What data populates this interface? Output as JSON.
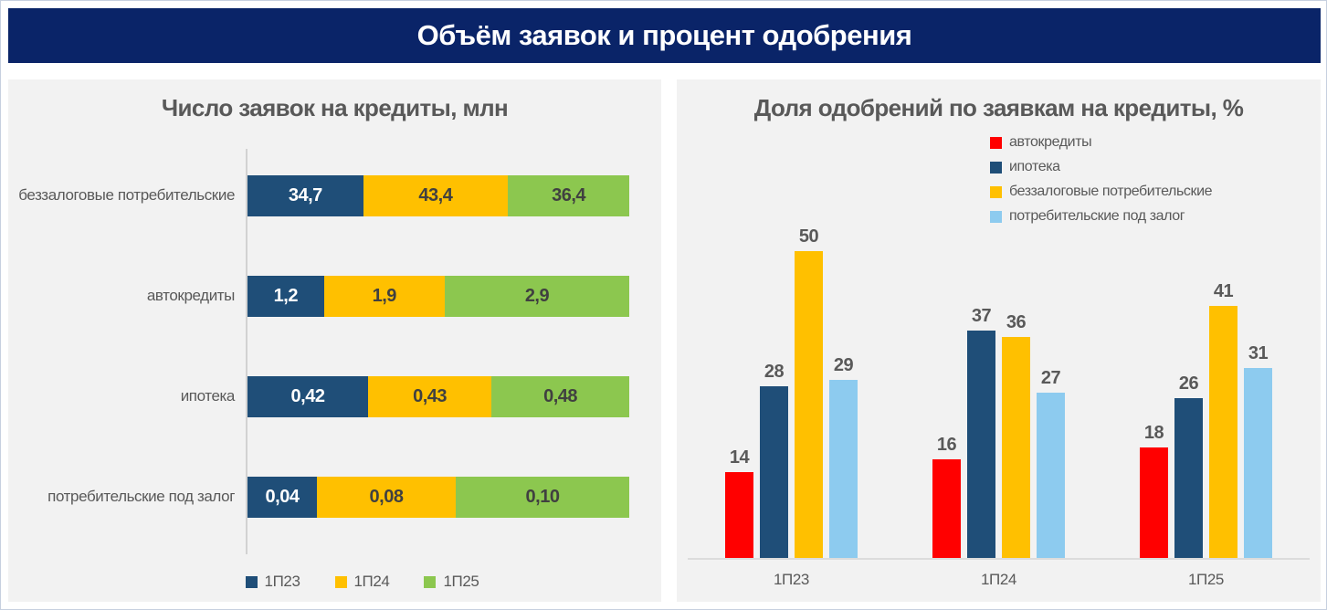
{
  "header": {
    "title": "Объём заявок и процент одобрения"
  },
  "style": {
    "header_bg": "#0A2468",
    "panel_bg": "#F2F2F2",
    "title_color": "#595959",
    "axis_color": "#D2D2D2",
    "value_label_on_dark": "#FFFFFF",
    "value_label_on_light": "#404040"
  },
  "chart_data": [
    {
      "type": "bar",
      "variant": "horizontal-100pct-stacked",
      "title": "Число заявок на кредиты, млн",
      "unit": "млн",
      "legend_position": "bottom",
      "grid": false,
      "categories": [
        "беззалоговые потребительские",
        "автокредиты",
        "ипотека",
        "потребительские под залог"
      ],
      "series": [
        {
          "name": "1П23",
          "color": "#1F4E78",
          "values": [
            34.7,
            1.2,
            0.42,
            0.04
          ],
          "labels": [
            "34,7",
            "1,2",
            "0,42",
            "0,04"
          ]
        },
        {
          "name": "1П24",
          "color": "#FFC000",
          "values": [
            43.4,
            1.9,
            0.43,
            0.08
          ],
          "labels": [
            "43,4",
            "1,9",
            "0,43",
            "0,08"
          ]
        },
        {
          "name": "1П25",
          "color": "#8CC74F",
          "values": [
            36.4,
            2.9,
            0.48,
            0.1
          ],
          "labels": [
            "36,4",
            "2,9",
            "0,48",
            "0,10"
          ]
        }
      ]
    },
    {
      "type": "bar",
      "variant": "vertical-grouped",
      "title": "Доля одобрений по заявкам на кредиты, %",
      "unit": "%",
      "legend_position": "top-right",
      "grid": false,
      "ylim": [
        0,
        50
      ],
      "categories": [
        "1П23",
        "1П24",
        "1П25"
      ],
      "series": [
        {
          "name": "автокредиты",
          "color": "#FF0000",
          "values": [
            14,
            16,
            18
          ]
        },
        {
          "name": "ипотека",
          "color": "#1F4E78",
          "values": [
            28,
            37,
            26
          ]
        },
        {
          "name": "беззалоговые потребительские",
          "color": "#FFC000",
          "values": [
            50,
            36,
            41
          ]
        },
        {
          "name": "потребительские под залог",
          "color": "#8DCBEF",
          "values": [
            29,
            27,
            31
          ]
        }
      ]
    }
  ]
}
